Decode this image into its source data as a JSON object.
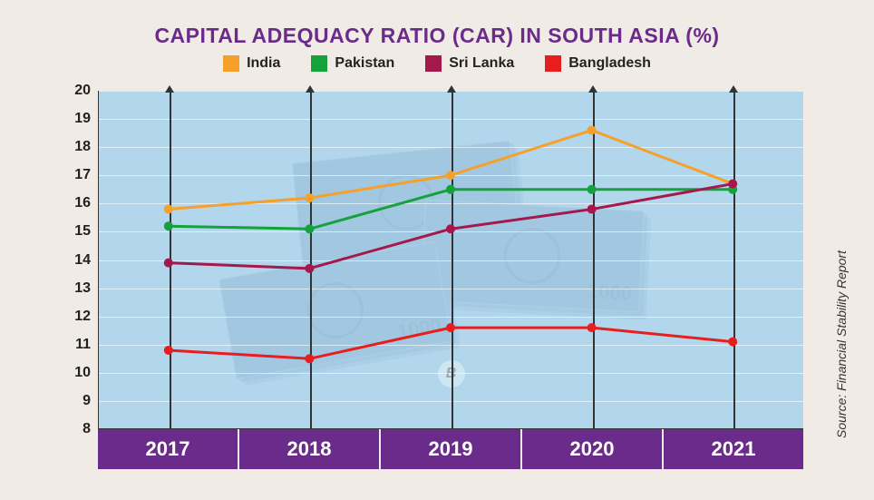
{
  "chart": {
    "type": "line",
    "title": "CAPITAL ADEQUACY RATIO (CAR) IN SOUTH ASIA (%)",
    "title_color": "#6b2b8a",
    "title_fontsize": 23,
    "background_color": "#a7d2ec",
    "page_background": "#f0ebe4",
    "axis_bar_color": "#6b2b8a",
    "grid_color": "rgba(255,255,255,0.6)",
    "ylim": [
      8,
      20
    ],
    "ytick_step": 1,
    "yticks": [
      8,
      9,
      10,
      11,
      12,
      13,
      14,
      15,
      16,
      17,
      18,
      19,
      20
    ],
    "categories": [
      "2017",
      "2018",
      "2019",
      "2020",
      "2021"
    ],
    "line_width": 3,
    "marker_radius": 5,
    "series": [
      {
        "name": "India",
        "color": "#f7a029",
        "values": [
          15.8,
          16.2,
          17.0,
          18.6,
          16.7
        ]
      },
      {
        "name": "Pakistan",
        "color": "#15a23c",
        "values": [
          15.2,
          15.1,
          16.5,
          16.5,
          16.5
        ]
      },
      {
        "name": "Sri Lanka",
        "color": "#a5184b",
        "values": [
          13.9,
          13.7,
          15.1,
          15.8,
          16.7
        ]
      },
      {
        "name": "Bangladesh",
        "color": "#e71e1e",
        "values": [
          10.8,
          10.5,
          11.6,
          11.6,
          11.1
        ]
      }
    ],
    "source": "Source: Financial Stability Report",
    "badge_text": "B"
  }
}
